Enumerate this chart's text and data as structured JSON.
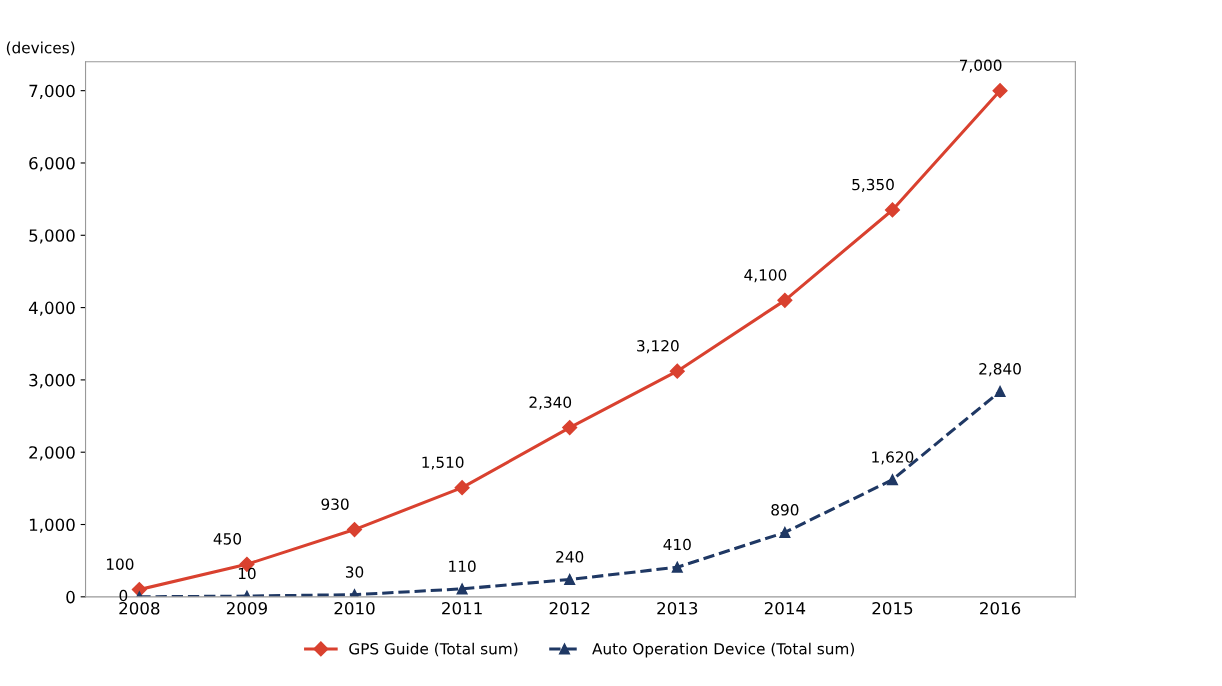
{
  "chart_data": {
    "type": "line",
    "ylabel": "(devices)",
    "categories": [
      "2008",
      "2009",
      "2010",
      "2011",
      "2012",
      "2013",
      "2014",
      "2015",
      "2016"
    ],
    "series": [
      {
        "name": "GPS Guide (Total sum)",
        "color": "#d9412f",
        "marker": "diamond",
        "line_style": "solid",
        "values": [
          100,
          450,
          930,
          1510,
          2340,
          3120,
          4100,
          5350,
          7000
        ],
        "value_labels": [
          "100",
          "450",
          "930",
          "1,510",
          "2,340",
          "3,120",
          "4,100",
          "5,350",
          "7,000"
        ]
      },
      {
        "name": "Auto Operation Device (Total sum)",
        "color": "#1f3864",
        "marker": "triangle",
        "line_style": "dashed",
        "values": [
          0,
          10,
          30,
          110,
          240,
          410,
          890,
          1620,
          2840
        ],
        "value_labels": [
          "0",
          "10",
          "30",
          "110",
          "240",
          "410",
          "890",
          "1,620",
          "2,840"
        ]
      }
    ],
    "ylim": [
      0,
      7400
    ],
    "yticks": [
      0,
      {
        "value": 1000,
        "label": "1,000"
      },
      {
        "value": 2000,
        "label": "2,000"
      },
      {
        "value": 3000,
        "label": "3,000"
      },
      {
        "value": 4000,
        "label": "4,000"
      },
      {
        "value": 5000,
        "label": "5,000"
      },
      {
        "value": 6000,
        "label": "6,000"
      },
      {
        "value": 7000,
        "label": "7,000"
      }
    ],
    "grid": false,
    "legend": "bottom"
  }
}
